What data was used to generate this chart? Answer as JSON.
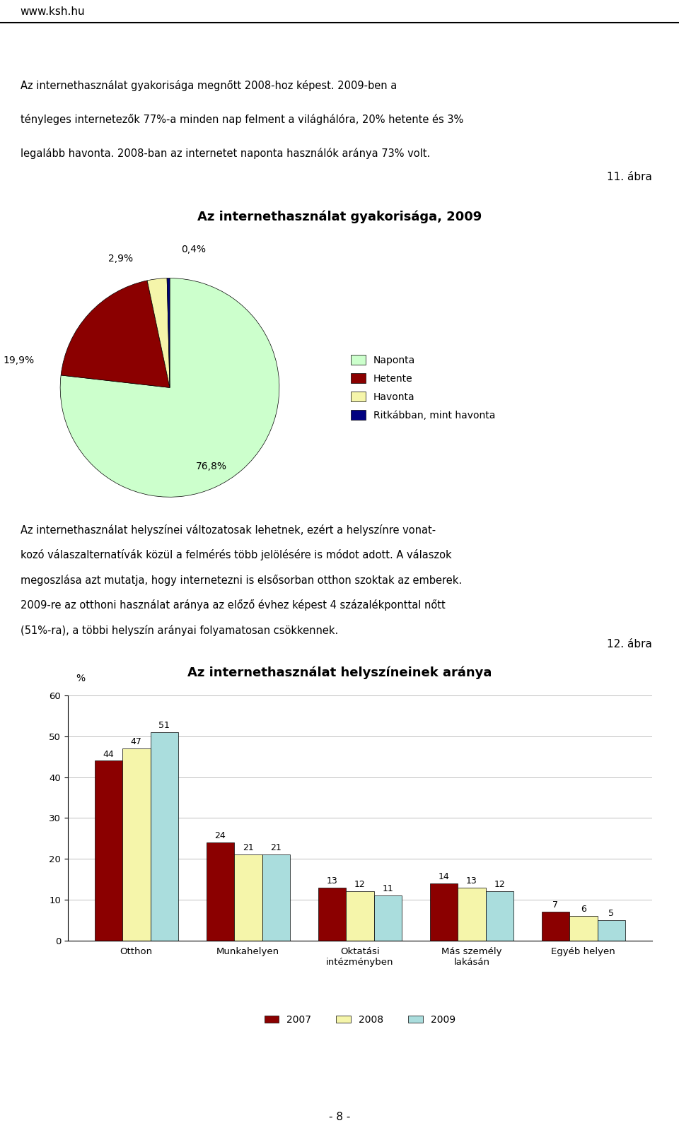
{
  "page_header": "www.ksh.hu",
  "para1_line1": "Az internethasználat gyakorisága megnőtt 2008-hoz képest. 2009-ben a",
  "para1_line2": "tényleges internetezők 77%-a minden nap felment a világhálóra, 20% hetente és 3%",
  "para1_line3": "legalább havonta. 2008-ban az internetet naponta használók aránya 73% volt.",
  "figure_number_1": "11. ábra",
  "pie_title": "Az internethasználat gyakorisága, 2009",
  "pie_slices": [
    76.8,
    19.9,
    2.9,
    0.4
  ],
  "pie_colors": [
    "#ccffcc",
    "#8b0000",
    "#f5f5aa",
    "#000080"
  ],
  "pie_legend_labels": [
    "Naponta",
    "Hetente",
    "Havonta",
    "Ritkábban, mint havonta"
  ],
  "pie_legend_colors": [
    "#ccffcc",
    "#8b0000",
    "#f5f5aa",
    "#000080"
  ],
  "pie_label_texts": [
    "76,8%",
    "19,9%",
    "2,9%",
    "0,4%"
  ],
  "para2_line1": "Az internethasználat helyszínei változatosak lehetnek, ezért a helyszínre vonat-",
  "para2_line2": "kozó válaszalternatívák közül a felmérés több jelölésére is módot adott. A válaszok",
  "para2_line3": "megoszlása azt mutatja, hogy internetezni is elsősorban otthon szoktak az emberek.",
  "para2_line4": "2009-re az otthoni használat aránya az előző évhez képest 4 százalékponttal nőtt",
  "para2_line5": "(51%-ra), a többi helyszín arányai folyamatosan csökkennek.",
  "figure_number_2": "12. ábra",
  "bar_title": "Az internethasználat helyszíneinek aránya",
  "bar_categories": [
    "Otthon",
    "Munkahelyen",
    "Oktatási\nintézményben",
    "Más személy\nlakásán",
    "Egyéb helyen"
  ],
  "bar_ylabel": "%",
  "bar_ylim": [
    0,
    60
  ],
  "bar_yticks": [
    0,
    10,
    20,
    30,
    40,
    50,
    60
  ],
  "bar_data_2007": [
    44,
    24,
    13,
    14,
    7
  ],
  "bar_data_2008": [
    47,
    21,
    12,
    13,
    6
  ],
  "bar_data_2009": [
    51,
    21,
    11,
    12,
    5
  ],
  "bar_color_2007": "#8b0000",
  "bar_color_2008": "#f5f5aa",
  "bar_color_2009": "#aadddd",
  "page_footer": "- 8 -",
  "background_color": "#ffffff"
}
